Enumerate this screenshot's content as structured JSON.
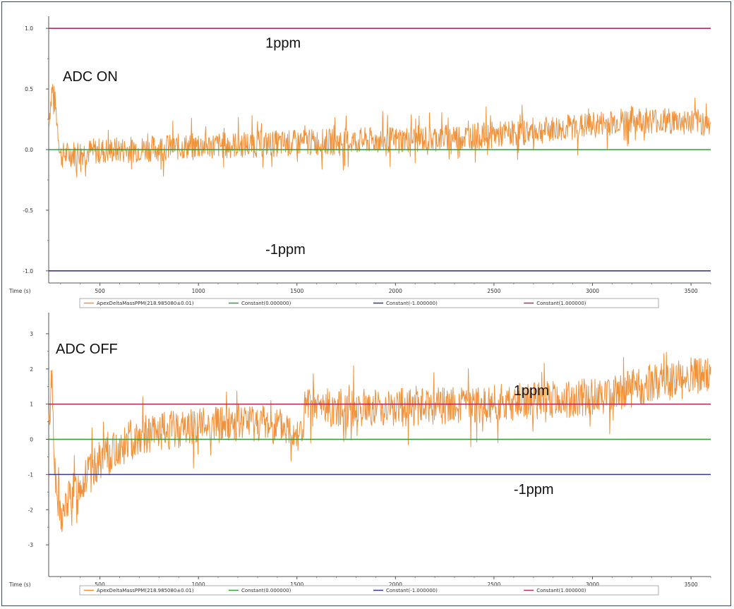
{
  "chart_data": [
    {
      "type": "line",
      "annotation": "ADC ON",
      "xlabel": "Time (s)",
      "ylabel": "",
      "xlim": [
        240,
        3600
      ],
      "ylim": [
        -1.1,
        1.1
      ],
      "x_ticks": [
        500,
        1000,
        1500,
        2000,
        2500,
        3000,
        3500
      ],
      "y_ticks": [
        "1.0",
        "0.5",
        "0.0",
        "-0.5",
        "-1.0"
      ],
      "y_tick_values": [
        1.0,
        0.5,
        0.0,
        -0.5,
        -1.0
      ],
      "grid": false,
      "legend_position": "bottom",
      "ref_labels": [
        {
          "text": "1ppm",
          "x": 1340,
          "y": 0.84
        },
        {
          "text": "-1ppm",
          "x": 1340,
          "y": -0.86
        }
      ],
      "series": [
        {
          "name": "ApexDeltaMassPPM(218.985080±0.01)",
          "color": "#f0923a",
          "kind": "noisy",
          "trend": [
            [
              240,
              0.25
            ],
            [
              260,
              0.5
            ],
            [
              275,
              0.35
            ],
            [
              300,
              -0.05
            ],
            [
              400,
              -0.02
            ],
            [
              1000,
              0.03
            ],
            [
              2000,
              0.08
            ],
            [
              2500,
              0.12
            ],
            [
              3000,
              0.2
            ],
            [
              3200,
              0.25
            ],
            [
              3600,
              0.22
            ]
          ],
          "amplitude": 0.11,
          "seed": 7
        },
        {
          "name": "Constant(0.000000)",
          "color": "#2fa03a",
          "kind": "constant",
          "value": 0.0
        },
        {
          "name": "Constant(-1.000000)",
          "color": "#3a3a8c",
          "kind": "constant",
          "value": -1.0
        },
        {
          "name": "Constant(1.000000)",
          "color": "#b03060",
          "kind": "constant",
          "value": 1.0
        }
      ]
    },
    {
      "type": "line",
      "annotation": "ADC OFF",
      "xlabel": "Time (s)",
      "ylabel": "",
      "xlim": [
        240,
        3600
      ],
      "ylim": [
        -3.9,
        3.6
      ],
      "x_ticks": [
        500,
        1000,
        1500,
        2000,
        2500,
        3000,
        3500
      ],
      "y_ticks": [
        "3",
        "2",
        "1",
        "0",
        "-1",
        "-2",
        "-3"
      ],
      "y_tick_values": [
        3,
        2,
        1,
        0,
        -1,
        -2,
        -3
      ],
      "grid": false,
      "legend_position": "bottom",
      "ref_labels": [
        {
          "text": "1ppm",
          "x": 2600,
          "y": 1.25
        },
        {
          "text": "-1ppm",
          "x": 2600,
          "y": -1.55
        }
      ],
      "series": [
        {
          "name": "ApexDeltaMassPPM(218.985080±0.01)",
          "color": "#f0923a",
          "kind": "noisy",
          "trend": [
            [
              240,
              0.3
            ],
            [
              255,
              1.9
            ],
            [
              275,
              -1.4
            ],
            [
              300,
              -2.3
            ],
            [
              350,
              -1.6
            ],
            [
              500,
              -0.6
            ],
            [
              700,
              0.1
            ],
            [
              1000,
              0.4
            ],
            [
              1300,
              0.5
            ],
            [
              1530,
              0.2
            ],
            [
              1540,
              0.9
            ],
            [
              2000,
              0.9
            ],
            [
              2500,
              1.0
            ],
            [
              3000,
              1.2
            ],
            [
              3300,
              1.6
            ],
            [
              3600,
              1.8
            ]
          ],
          "amplitude": 0.55,
          "seed": 13
        },
        {
          "name": "Constant(0.000000)",
          "color": "#2fa03a",
          "kind": "constant",
          "value": 0.0
        },
        {
          "name": "Constant(-1.000000)",
          "color": "#3a3a8c",
          "kind": "constant",
          "value": -1.0
        },
        {
          "name": "Constant(1.000000)",
          "color": "#b03060",
          "kind": "constant",
          "value": 1.0
        }
      ]
    }
  ]
}
